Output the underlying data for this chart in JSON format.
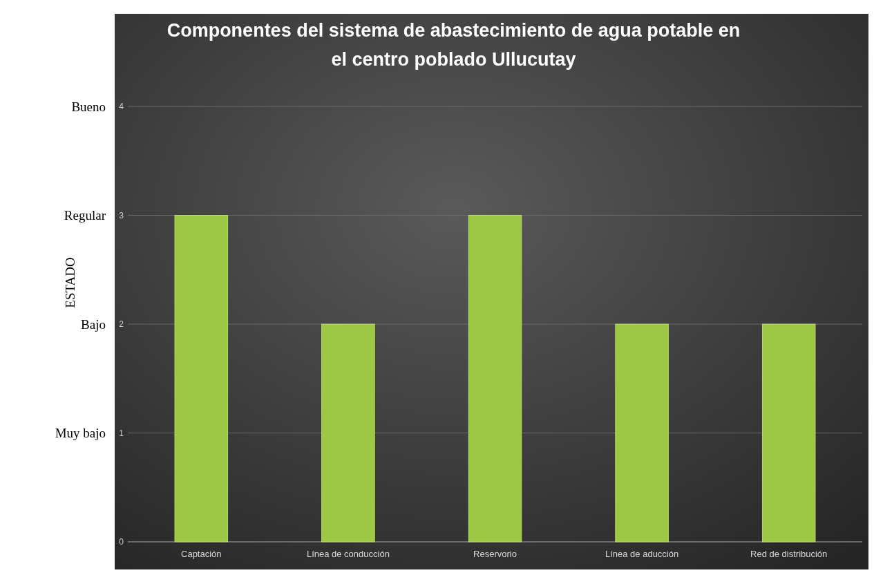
{
  "chart_data": {
    "type": "bar",
    "title": "Componentes del sistema de abastecimiento de agua potable en el centro poblado Ullucutay",
    "ylabel": "ESTADO",
    "categories": [
      "Captación",
      "Línea de conducción",
      "Reservorio",
      "Línea de aducción",
      "Red de distribución"
    ],
    "values": [
      3,
      2,
      3,
      2,
      2
    ],
    "color": "#9dc844",
    "ylim": [
      0,
      4
    ],
    "yticks": [
      0,
      1,
      2,
      3,
      4
    ],
    "annotations": [
      "Muy bajo",
      "Bajo",
      "Regular",
      "Bueno"
    ],
    "grid": "y"
  }
}
